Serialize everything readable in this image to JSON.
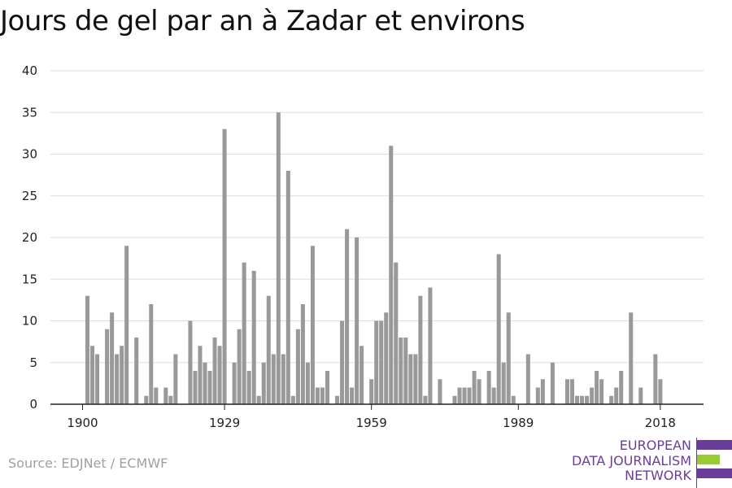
{
  "chart_data": {
    "type": "bar",
    "title": "Jours de gel par an à Zadar et environs",
    "xlabel": "",
    "ylabel": "",
    "ylim": [
      0,
      40
    ],
    "yticks": [
      0,
      5,
      10,
      15,
      20,
      25,
      30,
      35,
      40
    ],
    "xticks": [
      1900,
      1929,
      1959,
      1989,
      2018
    ],
    "grid": true,
    "bar_color": "#999999",
    "x": [
      1900,
      1901,
      1902,
      1903,
      1904,
      1905,
      1906,
      1907,
      1908,
      1909,
      1910,
      1911,
      1912,
      1913,
      1914,
      1915,
      1916,
      1917,
      1918,
      1919,
      1920,
      1921,
      1922,
      1923,
      1924,
      1925,
      1926,
      1927,
      1928,
      1929,
      1930,
      1931,
      1932,
      1933,
      1934,
      1935,
      1936,
      1937,
      1938,
      1939,
      1940,
      1941,
      1942,
      1943,
      1944,
      1945,
      1946,
      1947,
      1948,
      1949,
      1950,
      1951,
      1952,
      1953,
      1954,
      1955,
      1956,
      1957,
      1958,
      1959,
      1960,
      1961,
      1962,
      1963,
      1964,
      1965,
      1966,
      1967,
      1968,
      1969,
      1970,
      1971,
      1972,
      1973,
      1974,
      1975,
      1976,
      1977,
      1978,
      1979,
      1980,
      1981,
      1982,
      1983,
      1984,
      1985,
      1986,
      1987,
      1988,
      1989,
      1990,
      1991,
      1992,
      1993,
      1994,
      1995,
      1996,
      1997,
      1998,
      1999,
      2000,
      2001,
      2002,
      2003,
      2004,
      2005,
      2006,
      2007,
      2008,
      2009,
      2010,
      2011,
      2012,
      2013,
      2014,
      2015,
      2016,
      2017,
      2018,
      2019,
      2020
    ],
    "values": [
      0,
      13,
      7,
      6,
      0,
      9,
      11,
      6,
      7,
      19,
      0,
      8,
      0,
      1,
      12,
      2,
      0,
      2,
      1,
      6,
      0,
      0,
      10,
      4,
      7,
      5,
      4,
      8,
      7,
      33,
      0,
      5,
      9,
      17,
      4,
      16,
      1,
      5,
      13,
      6,
      35,
      6,
      28,
      1,
      9,
      12,
      5,
      19,
      2,
      2,
      4,
      0,
      1,
      10,
      21,
      2,
      20,
      7,
      0,
      3,
      10,
      10,
      11,
      31,
      17,
      8,
      8,
      6,
      6,
      13,
      1,
      14,
      0,
      3,
      0,
      0,
      1,
      2,
      2,
      2,
      4,
      3,
      0,
      4,
      2,
      18,
      5,
      11,
      1,
      0,
      0,
      6,
      0,
      2,
      3,
      0,
      5,
      0,
      0,
      3,
      3,
      1,
      1,
      1,
      2,
      4,
      3,
      0,
      1,
      2,
      4,
      0,
      11,
      0,
      2,
      0,
      0,
      6,
      3,
      0,
      0
    ]
  },
  "source": "Source: EDJNet / ECMWF",
  "logo": {
    "line1": "EUROPEAN",
    "line2": "DATA JOURNALISM",
    "line3": "NETWORK",
    "purple": "#6a3d9a",
    "green": "#99cc33"
  }
}
